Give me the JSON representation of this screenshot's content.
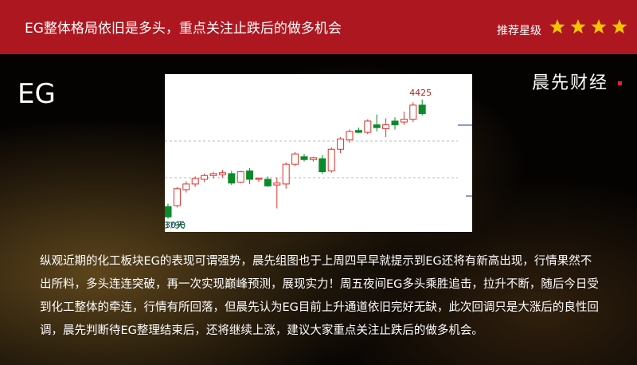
{
  "header": {
    "title": "EG整体格局依旧是多头，重点关注止跌后的做多机会",
    "rating_label": "推荐星级",
    "stars": 4
  },
  "logo": "晨先财经",
  "symbol": "EG",
  "chart_data": {
    "type": "candlestick",
    "period_label": "30天",
    "ylim": [
      3720,
      4560
    ],
    "up_color": "#e0302a",
    "down_color": "#0a8a2a",
    "candles": [
      {
        "open": 3855,
        "high": 3870,
        "low": 3790,
        "close": 3800
      },
      {
        "open": 3860,
        "high": 3960,
        "low": 3850,
        "close": 3950
      },
      {
        "open": 3945,
        "high": 3990,
        "low": 3930,
        "close": 3975
      },
      {
        "open": 3975,
        "high": 4015,
        "low": 3960,
        "close": 4005
      },
      {
        "open": 4000,
        "high": 4030,
        "low": 3985,
        "close": 4020
      },
      {
        "open": 4020,
        "high": 4040,
        "low": 4005,
        "close": 4030
      },
      {
        "open": 4025,
        "high": 4050,
        "low": 4010,
        "close": 4035
      },
      {
        "open": 4030,
        "high": 4045,
        "low": 3970,
        "close": 3980
      },
      {
        "open": 3985,
        "high": 4045,
        "low": 3980,
        "close": 4040
      },
      {
        "open": 4045,
        "high": 4060,
        "low": 3975,
        "close": 4000
      },
      {
        "open": 4000,
        "high": 4010,
        "low": 3985,
        "close": 4005
      },
      {
        "open": 4000,
        "high": 4015,
        "low": 3960,
        "close": 3965
      },
      {
        "open": 3970,
        "high": 4010,
        "low": 3845,
        "close": 3980
      },
      {
        "open": 3975,
        "high": 4090,
        "low": 3950,
        "close": 4080
      },
      {
        "open": 4080,
        "high": 4145,
        "low": 4070,
        "close": 4135
      },
      {
        "open": 4120,
        "high": 4135,
        "low": 4095,
        "close": 4105
      },
      {
        "open": 4105,
        "high": 4120,
        "low": 4095,
        "close": 4115
      },
      {
        "open": 4110,
        "high": 4130,
        "low": 4030,
        "close": 4040
      },
      {
        "open": 4045,
        "high": 4170,
        "low": 4035,
        "close": 4160
      },
      {
        "open": 4160,
        "high": 4225,
        "low": 4140,
        "close": 4215
      },
      {
        "open": 4210,
        "high": 4265,
        "low": 4195,
        "close": 4255
      },
      {
        "open": 4260,
        "high": 4275,
        "low": 4245,
        "close": 4250
      },
      {
        "open": 4250,
        "high": 4320,
        "low": 4240,
        "close": 4310
      },
      {
        "open": 4290,
        "high": 4345,
        "low": 4255,
        "close": 4275
      },
      {
        "open": 4270,
        "high": 4325,
        "low": 4225,
        "close": 4290
      },
      {
        "open": 4310,
        "high": 4330,
        "low": 4265,
        "close": 4290
      },
      {
        "open": 4305,
        "high": 4360,
        "low": 4290,
        "close": 4320
      },
      {
        "open": 4320,
        "high": 4410,
        "low": 4305,
        "close": 4395
      },
      {
        "open": 4395,
        "high": 4425,
        "low": 4340,
        "close": 4350
      }
    ]
  },
  "body_text": "纵观近期的化工板块EG的表现可谓强势，晨先组图也于上周四早早就提示到EG还将有新高出现，行情果然不出所料，多头连连突破，再一次实现巅峰预测，展现实力！周五夜间EG多头乘胜追击，拉升不断，随后今日受到化工整体的牵连，行情有所回落，但晨先认为EG目前上升通道依旧完好无缺，此次回调只是大涨后的良性回调，晨先判断待EG整理结束后，还将继续上涨，建议大家重点关注止跌后的做多机会。"
}
